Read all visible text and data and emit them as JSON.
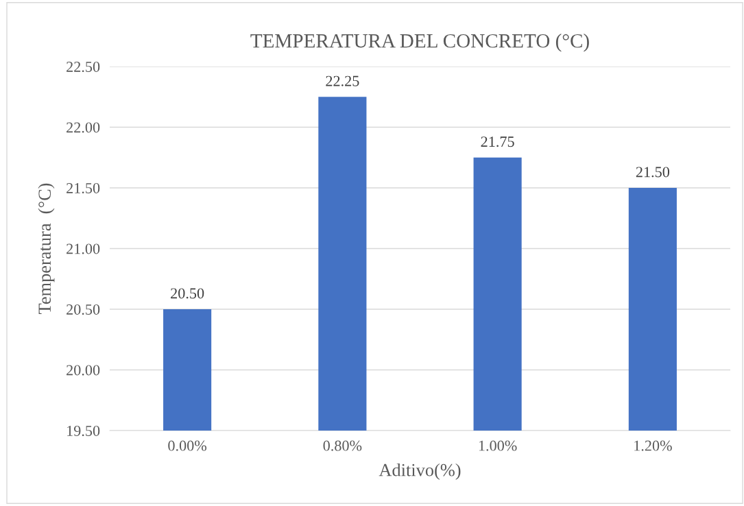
{
  "chart_data": {
    "type": "bar",
    "title": "TEMPERATURA DEL CONCRETO (°C)",
    "xlabel": "Aditivo(%)",
    "ylabel": "Temperatura  (°C)",
    "categories": [
      "0.00%",
      "0.80%",
      "1.00%",
      "1.20%"
    ],
    "values": [
      20.5,
      22.25,
      21.75,
      21.5
    ],
    "value_labels": [
      "20.50",
      "22.25",
      "21.75",
      "21.50"
    ],
    "color": "#4472c4",
    "ylim": [
      19.5,
      22.5
    ],
    "yticks": [
      {
        "value": 19.5,
        "label": "19.50"
      },
      {
        "value": 20.0,
        "label": "20.00"
      },
      {
        "value": 20.5,
        "label": "20.50"
      },
      {
        "value": 21.0,
        "label": "21.00"
      },
      {
        "value": 21.5,
        "label": "21.50"
      },
      {
        "value": 22.0,
        "label": "22.00"
      },
      {
        "value": 22.5,
        "label": "22.50"
      }
    ],
    "grid": "y",
    "legend": false
  }
}
